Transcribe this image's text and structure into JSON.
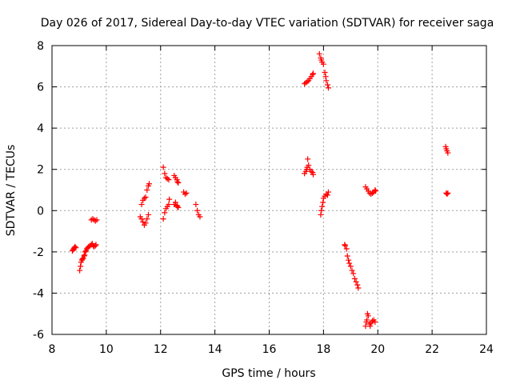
{
  "chart_data": {
    "type": "scatter",
    "title": "Day 026 of 2017, Sidereal Day-to-day VTEC variation (SDTVAR) for receiver saga",
    "xlabel": "GPS time / hours",
    "ylabel": "SDTVAR / TECUs",
    "xlim": [
      8,
      24
    ],
    "ylim": [
      -6,
      8
    ],
    "xticks": [
      8,
      10,
      12,
      14,
      16,
      18,
      20,
      22,
      24
    ],
    "yticks": [
      -6,
      -4,
      -2,
      0,
      2,
      4,
      6,
      8
    ],
    "grid": true,
    "marker": "plus",
    "color": "#ff0000",
    "series": [
      {
        "name": "SDTVAR",
        "points": [
          [
            8.75,
            -1.95
          ],
          [
            8.78,
            -1.9
          ],
          [
            8.8,
            -1.85
          ],
          [
            8.82,
            -1.8
          ],
          [
            8.85,
            -1.75
          ],
          [
            8.88,
            -1.8
          ],
          [
            9.02,
            -2.9
          ],
          [
            9.05,
            -2.7
          ],
          [
            9.07,
            -2.5
          ],
          [
            9.1,
            -2.4
          ],
          [
            9.12,
            -2.35
          ],
          [
            9.15,
            -2.3
          ],
          [
            9.18,
            -2.2
          ],
          [
            9.2,
            -2.15
          ],
          [
            9.22,
            -2.0
          ],
          [
            9.25,
            -1.95
          ],
          [
            9.28,
            -1.85
          ],
          [
            9.32,
            -1.8
          ],
          [
            9.35,
            -1.75
          ],
          [
            9.4,
            -1.7
          ],
          [
            9.45,
            -1.65
          ],
          [
            9.48,
            -1.6
          ],
          [
            9.52,
            -1.7
          ],
          [
            9.55,
            -1.75
          ],
          [
            9.6,
            -1.7
          ],
          [
            9.62,
            -1.65
          ],
          [
            9.45,
            -0.45
          ],
          [
            9.5,
            -0.4
          ],
          [
            9.55,
            -0.45
          ],
          [
            9.6,
            -0.5
          ],
          [
            9.65,
            -0.45
          ],
          [
            11.25,
            -0.3
          ],
          [
            11.3,
            -0.4
          ],
          [
            11.35,
            -0.55
          ],
          [
            11.4,
            -0.7
          ],
          [
            11.45,
            -0.6
          ],
          [
            11.5,
            -0.4
          ],
          [
            11.55,
            -0.2
          ],
          [
            11.3,
            0.3
          ],
          [
            11.35,
            0.5
          ],
          [
            11.4,
            0.6
          ],
          [
            11.45,
            0.65
          ],
          [
            11.5,
            1.0
          ],
          [
            11.55,
            1.2
          ],
          [
            11.58,
            1.3
          ],
          [
            12.1,
            -0.4
          ],
          [
            12.15,
            -0.1
          ],
          [
            12.2,
            0.1
          ],
          [
            12.25,
            0.2
          ],
          [
            12.3,
            0.3
          ],
          [
            12.32,
            0.55
          ],
          [
            12.1,
            2.1
          ],
          [
            12.15,
            1.8
          ],
          [
            12.2,
            1.6
          ],
          [
            12.25,
            1.55
          ],
          [
            12.3,
            1.5
          ],
          [
            12.5,
            1.7
          ],
          [
            12.55,
            1.6
          ],
          [
            12.6,
            1.5
          ],
          [
            12.62,
            1.4
          ],
          [
            12.65,
            1.35
          ],
          [
            12.5,
            0.3
          ],
          [
            12.55,
            0.4
          ],
          [
            12.6,
            0.25
          ],
          [
            12.62,
            0.2
          ],
          [
            12.65,
            0.15
          ],
          [
            12.85,
            0.9
          ],
          [
            12.9,
            0.8
          ],
          [
            12.95,
            0.85
          ],
          [
            13.3,
            0.3
          ],
          [
            13.35,
            0.0
          ],
          [
            13.4,
            -0.2
          ],
          [
            13.45,
            -0.3
          ],
          [
            17.3,
            6.15
          ],
          [
            17.35,
            6.2
          ],
          [
            17.4,
            6.25
          ],
          [
            17.45,
            6.3
          ],
          [
            17.5,
            6.4
          ],
          [
            17.55,
            6.5
          ],
          [
            17.6,
            6.6
          ],
          [
            17.62,
            6.65
          ],
          [
            17.85,
            7.6
          ],
          [
            17.9,
            7.4
          ],
          [
            17.92,
            7.3
          ],
          [
            17.95,
            7.2
          ],
          [
            18.0,
            7.1
          ],
          [
            18.05,
            6.7
          ],
          [
            18.08,
            6.5
          ],
          [
            18.1,
            6.3
          ],
          [
            18.15,
            6.1
          ],
          [
            18.18,
            5.95
          ],
          [
            17.3,
            1.8
          ],
          [
            17.35,
            1.9
          ],
          [
            17.38,
            2.0
          ],
          [
            17.4,
            2.1
          ],
          [
            17.42,
            2.5
          ],
          [
            17.45,
            2.2
          ],
          [
            17.5,
            2.0
          ],
          [
            17.55,
            1.9
          ],
          [
            17.6,
            1.85
          ],
          [
            17.62,
            1.75
          ],
          [
            17.9,
            -0.2
          ],
          [
            17.92,
            0.0
          ],
          [
            17.95,
            0.2
          ],
          [
            17.98,
            0.4
          ],
          [
            18.0,
            0.6
          ],
          [
            18.05,
            0.7
          ],
          [
            18.1,
            0.8
          ],
          [
            18.15,
            0.75
          ],
          [
            18.18,
            0.9
          ],
          [
            18.78,
            -1.65
          ],
          [
            18.8,
            -1.7
          ],
          [
            18.85,
            -1.85
          ],
          [
            18.88,
            -2.2
          ],
          [
            18.92,
            -2.4
          ],
          [
            18.95,
            -2.55
          ],
          [
            19.0,
            -2.7
          ],
          [
            19.05,
            -2.9
          ],
          [
            19.1,
            -3.05
          ],
          [
            19.15,
            -3.3
          ],
          [
            19.2,
            -3.45
          ],
          [
            19.25,
            -3.6
          ],
          [
            19.28,
            -3.75
          ],
          [
            19.55,
            -5.6
          ],
          [
            19.58,
            -5.4
          ],
          [
            19.6,
            -5.3
          ],
          [
            19.62,
            -5.0
          ],
          [
            19.65,
            -5.1
          ],
          [
            19.7,
            -5.5
          ],
          [
            19.72,
            -5.6
          ],
          [
            19.75,
            -5.45
          ],
          [
            19.8,
            -5.35
          ],
          [
            19.85,
            -5.3
          ],
          [
            19.9,
            -5.4
          ],
          [
            19.55,
            1.15
          ],
          [
            19.6,
            1.05
          ],
          [
            19.65,
            0.95
          ],
          [
            19.7,
            0.85
          ],
          [
            19.75,
            0.8
          ],
          [
            19.8,
            0.85
          ],
          [
            19.85,
            0.9
          ],
          [
            19.9,
            1.0
          ],
          [
            19.92,
            0.95
          ],
          [
            22.5,
            3.1
          ],
          [
            22.52,
            3.0
          ],
          [
            22.55,
            2.9
          ],
          [
            22.58,
            2.8
          ],
          [
            22.52,
            0.85
          ],
          [
            22.55,
            0.8
          ],
          [
            22.58,
            0.85
          ]
        ]
      }
    ]
  }
}
